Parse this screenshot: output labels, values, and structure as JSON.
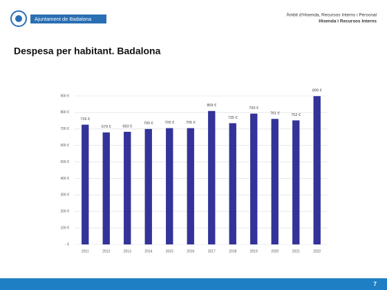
{
  "header": {
    "logo_text": "Ajuntament de Badalona",
    "line1": "Àmbit d'Hisenda, Recursos Interns i Personal",
    "line2": "Hisenda i Recursos Interns"
  },
  "page_number": 7,
  "chart_data": {
    "type": "bar",
    "title": "Despesa per habitant. Badalona",
    "categories": [
      "2011",
      "2012",
      "2013",
      "2014",
      "2015",
      "2016",
      "2017",
      "2018",
      "2019",
      "2020",
      "2021",
      "2022"
    ],
    "values": [
      726,
      679,
      683,
      700,
      705,
      705,
      809,
      735,
      793,
      761,
      752,
      899
    ],
    "value_labels": [
      "726 €",
      "679 €",
      "683 €",
      "700 €",
      "705 €",
      "705 €",
      "809 €",
      "735 €",
      "793 €",
      "761 €",
      "752 €",
      "899 €"
    ],
    "color": "#333399",
    "ylim": [
      0,
      900
    ],
    "yticks": [
      {
        "value": 0,
        "label": "-  €"
      },
      {
        "value": 100,
        "label": "100 €"
      },
      {
        "value": 200,
        "label": "200 €"
      },
      {
        "value": 300,
        "label": "300 €"
      },
      {
        "value": 400,
        "label": "400 €"
      },
      {
        "value": 500,
        "label": "500 €"
      },
      {
        "value": 600,
        "label": "600 €"
      },
      {
        "value": 700,
        "label": "700 €"
      },
      {
        "value": 800,
        "label": "800 €"
      },
      {
        "value": 900,
        "label": "900 €"
      }
    ],
    "grid": true
  }
}
